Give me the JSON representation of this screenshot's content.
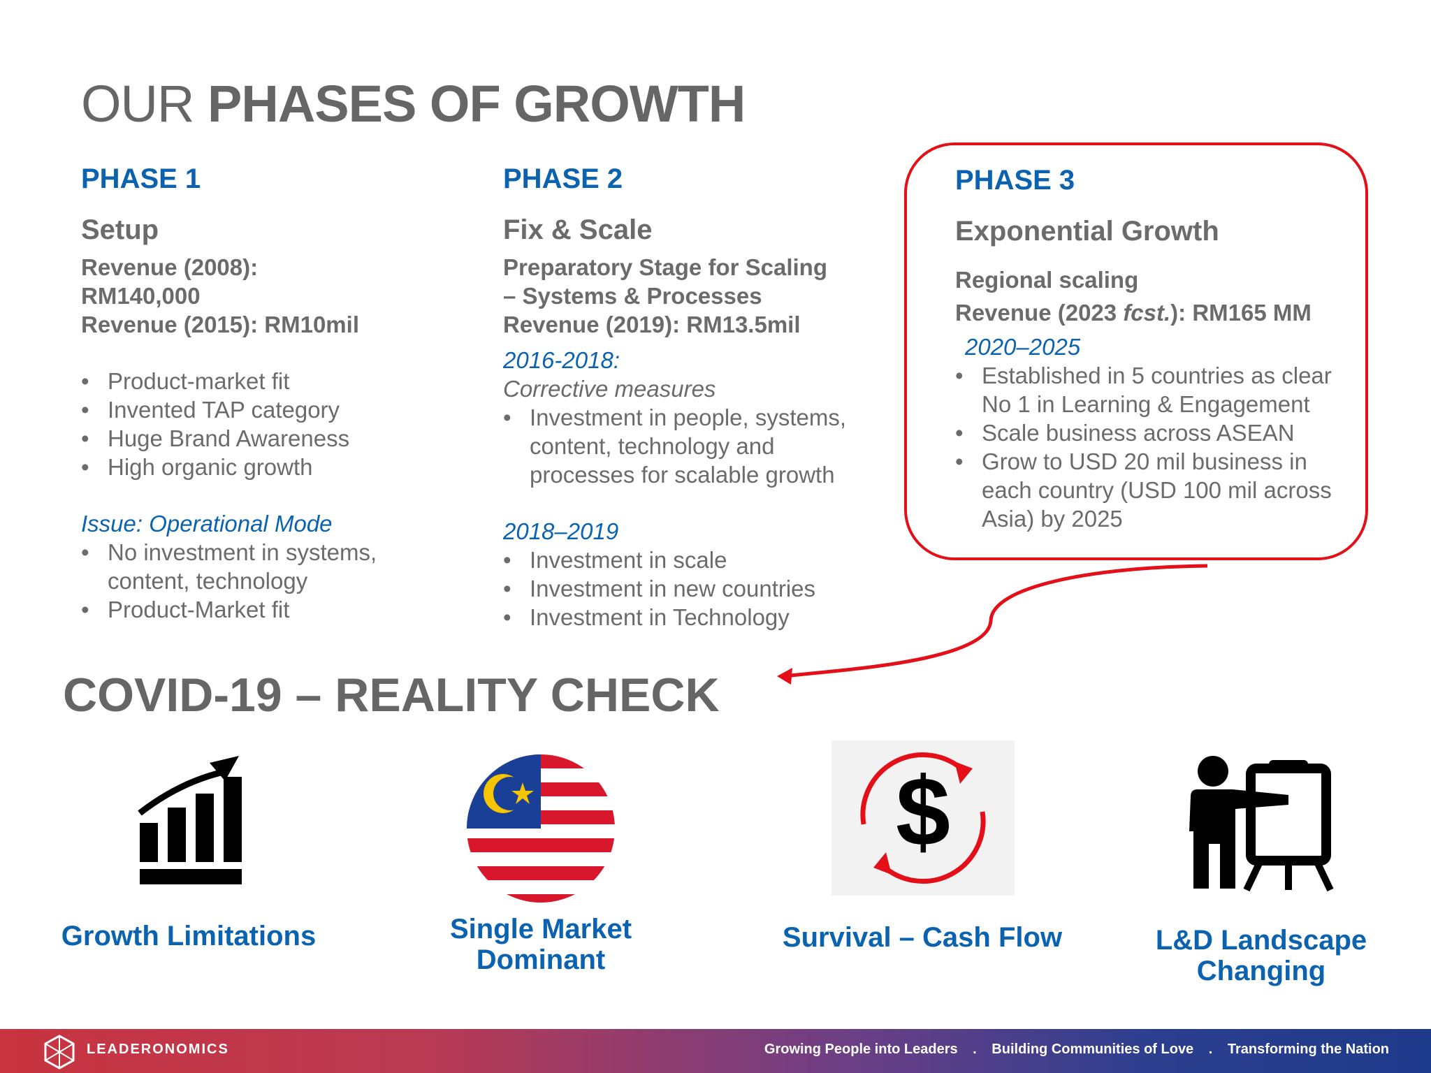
{
  "title": {
    "light": "OUR",
    "bold": "PHASES OF GROWTH"
  },
  "phase1": {
    "label": "PHASE 1",
    "name": "Setup",
    "revenue": [
      "Revenue (2008):",
      "RM140,000",
      "Revenue (2015): RM10mil"
    ],
    "bullets": [
      "Product-market fit",
      "Invented TAP category",
      "Huge Brand Awareness",
      "High organic growth"
    ],
    "issue_heading": "Issue: Operational Mode",
    "issue_bullets": [
      "No investment in systems, content, technology",
      "Product-Market fit"
    ]
  },
  "phase2": {
    "label": "PHASE 2",
    "name": "Fix & Scale",
    "revenue": [
      "Preparatory Stage for Scaling",
      "– Systems & Processes",
      "Revenue (2019): RM13.5mil"
    ],
    "period1": "2016-2018:",
    "period1_sub": "Corrective measures",
    "period1_bullets": [
      "Investment in people, systems, content, technology and processes for scalable growth"
    ],
    "period2": "2018–2019",
    "period2_bullets": [
      "Investment in scale",
      "Investment in new countries",
      "Investment in Technology"
    ]
  },
  "phase3": {
    "label": "PHASE 3",
    "name": "Exponential Growth",
    "scaling": "Regional scaling",
    "revenue_prefix": "Revenue (2023 ",
    "revenue_italic": "fcst.",
    "revenue_suffix": "): RM165 MM",
    "period": "2020–2025",
    "bullets": [
      "Established in 5 countries as clear No 1 in Learning & Engagement",
      "Scale business across ASEAN",
      "Grow to USD 20 mil business in each country (USD 100 mil across Asia) by 2025"
    ]
  },
  "covid_title": "COVID-19 – REALITY CHECK",
  "challenges": [
    {
      "icon": "growth-chart-icon",
      "label": "Growth Limitations"
    },
    {
      "icon": "malaysia-flag-icon",
      "label": "Single Market Dominant"
    },
    {
      "icon": "cash-flow-icon",
      "label": "Survival – Cash Flow"
    },
    {
      "icon": "presenter-icon",
      "label": "L&D Landscape Changing"
    }
  ],
  "footer": {
    "brand": "LEADERONOMICS",
    "tagline": [
      "Growing People into Leaders",
      "Building Communities of Love",
      "Transforming the Nation"
    ],
    "separator": "."
  },
  "colors": {
    "accent_blue": "#0b63b0",
    "highlight_red": "#e3101a",
    "text_grey": "#6b6b6b"
  }
}
